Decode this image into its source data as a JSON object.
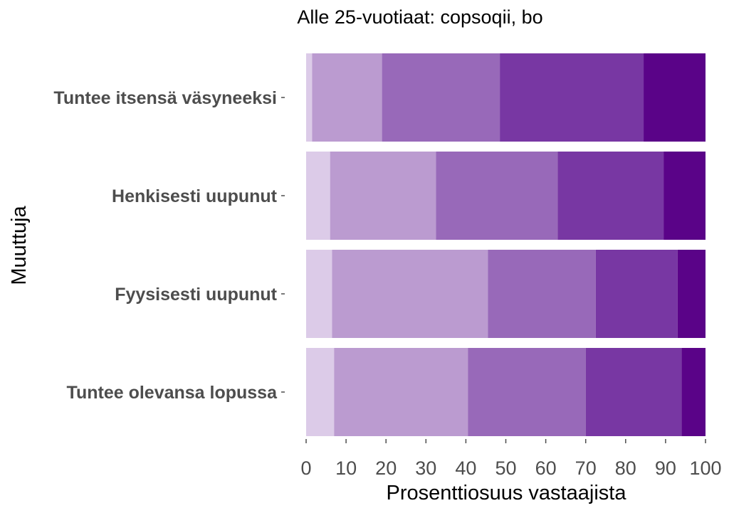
{
  "chart_data": {
    "type": "bar",
    "orientation": "horizontal",
    "stacked": true,
    "title": "Alle 25-vuotiaat: copsoqii, bo",
    "xlabel": "Prosenttiosuus vastaajista",
    "ylabel": "Muuttuja",
    "xlim": [
      0,
      100
    ],
    "xticks": [
      "0",
      "10",
      "20",
      "30",
      "40",
      "50",
      "60",
      "70",
      "80",
      "90",
      "100"
    ],
    "grid": false,
    "legend": "none",
    "categories": [
      "Tuntee itsensä väsyneeksi",
      "Henkisesti uupunut",
      "Fyysisesti uupunut",
      "Tuntee olevansa lopussa"
    ],
    "series": [
      {
        "color": "#dccbe8",
        "values": [
          1.5,
          6,
          6.5,
          7
        ]
      },
      {
        "color": "#bb9bd0",
        "values": [
          17.5,
          26.5,
          39,
          33.5
        ]
      },
      {
        "color": "#9869b9",
        "values": [
          29.5,
          30.5,
          27,
          29.5
        ]
      },
      {
        "color": "#7837a3",
        "values": [
          36,
          26.5,
          20.5,
          24
        ]
      },
      {
        "color": "#5a0388",
        "values": [
          15.5,
          10.5,
          7,
          6
        ]
      }
    ]
  }
}
